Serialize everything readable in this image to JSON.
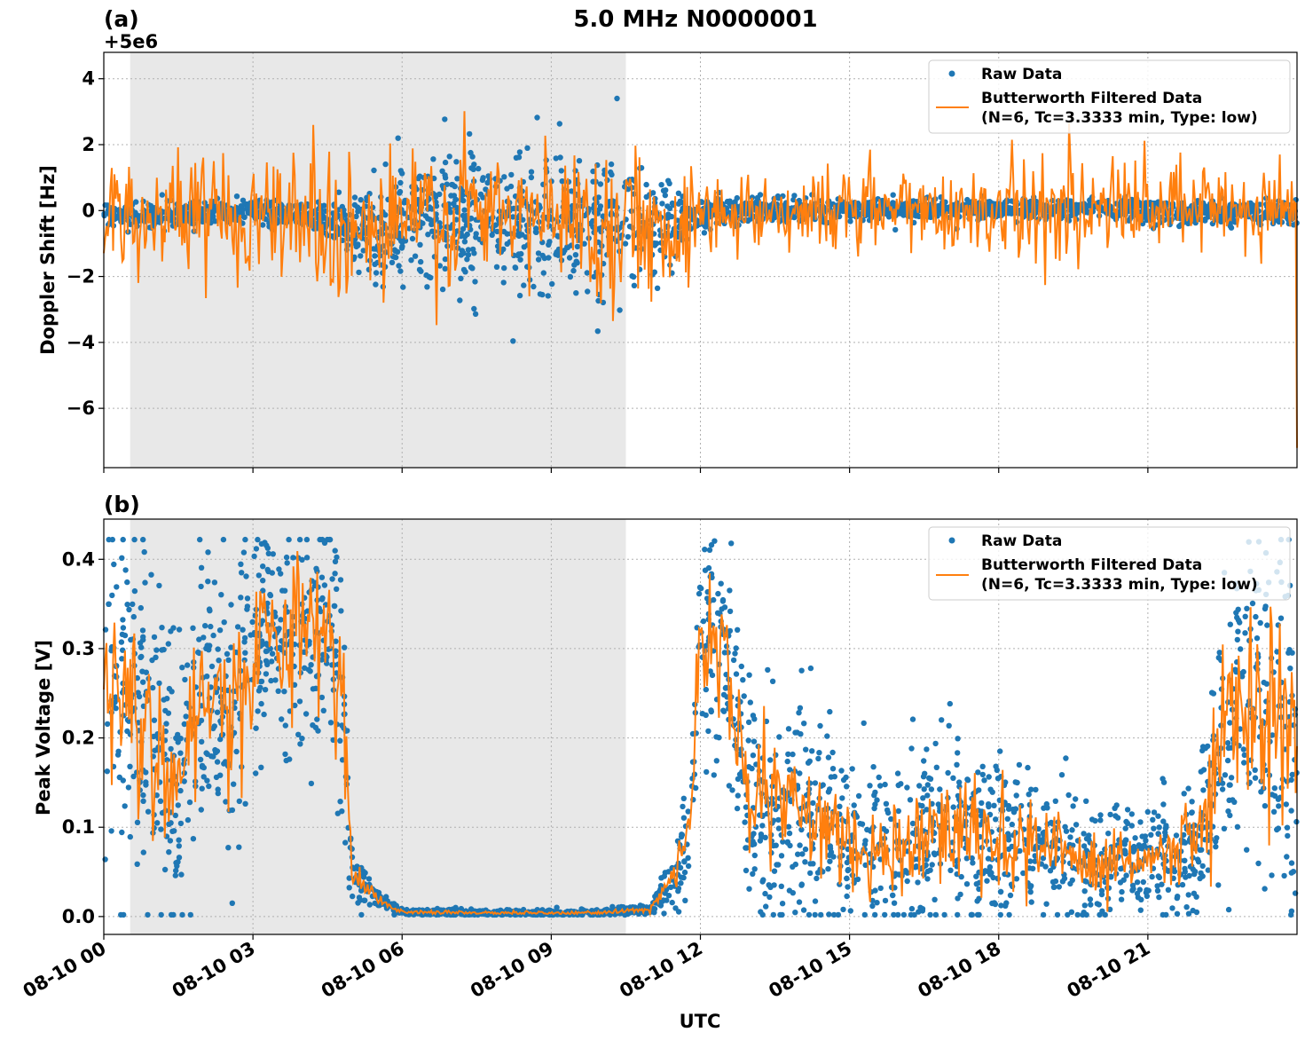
{
  "figure": {
    "title": "5.0 MHz N0000001",
    "xlabel": "UTC"
  },
  "colors": {
    "raw": "#1f77b4",
    "filtered": "#ff7f0e",
    "shade": "#e8e8e8"
  },
  "chart_data": [
    {
      "type": "scatter",
      "panel_label": "(a)",
      "offset_label": "+5e6",
      "ylabel": "Doppler Shift [Hz]",
      "xlim_hours": [
        0,
        24
      ],
      "ylim": [
        -7.8,
        4.8
      ],
      "yticks": [
        -6,
        -4,
        -2,
        0,
        2,
        4
      ],
      "ytick_labels": [
        "−6",
        "−4",
        "−2",
        "0",
        "2",
        "4"
      ],
      "xticks_hours": [
        0,
        3,
        6,
        9,
        12,
        15,
        18,
        21
      ],
      "xtick_labels": [
        "08-10 00",
        "08-10 03",
        "08-10 06",
        "08-10 09",
        "08-10 12",
        "08-10 15",
        "08-10 18",
        "08-10 21"
      ],
      "shaded_interval_hours": [
        0.53,
        10.5
      ],
      "grid": true,
      "legend_position": "top-right",
      "series": [
        {
          "name": "Raw Data",
          "kind": "points"
        },
        {
          "name": "Butterworth Filtered Data",
          "name_line2": "(N=6, Tc=3.3333 min, Type: low)",
          "kind": "line"
        }
      ],
      "envelope": {
        "x_hours": [
          0,
          1,
          2,
          3,
          4,
          4.8,
          5.5,
          6,
          7,
          8,
          9,
          10,
          10.5,
          11.2,
          11.8,
          12.5,
          14,
          16,
          18,
          20,
          22,
          24
        ],
        "spread": [
          0.3,
          0.3,
          0.3,
          0.3,
          0.3,
          0.5,
          1.4,
          1.6,
          1.6,
          1.6,
          1.7,
          1.8,
          1.6,
          1.2,
          0.5,
          0.3,
          0.25,
          0.25,
          0.25,
          0.25,
          0.3,
          0.3
        ],
        "mean": [
          -0.15,
          -0.15,
          -0.1,
          0.0,
          -0.1,
          -0.4,
          -0.8,
          -0.3,
          -0.2,
          -0.2,
          -0.2,
          -0.3,
          -0.4,
          -0.5,
          -0.2,
          0.0,
          0.0,
          0.05,
          0.05,
          0.05,
          -0.05,
          -0.05
        ],
        "filtered_spread": [
          1.1,
          1.1,
          1.1,
          1.2,
          1.4,
          1.5,
          1.7,
          1.6,
          1.5,
          1.3,
          1.3,
          1.4,
          1.4,
          1.3,
          1.0,
          0.8,
          0.8,
          0.9,
          0.9,
          0.9,
          1.0,
          1.1
        ]
      },
      "extremes": {
        "max_raw": 4.2,
        "min_raw": -4.5,
        "end_filtered": -7.2
      }
    },
    {
      "type": "scatter",
      "panel_label": "(b)",
      "ylabel": "Peak Voltage [V]",
      "xlim_hours": [
        0,
        24
      ],
      "ylim": [
        -0.02,
        0.445
      ],
      "yticks": [
        0.0,
        0.1,
        0.2,
        0.3,
        0.4
      ],
      "ytick_labels": [
        "0.0",
        "0.1",
        "0.2",
        "0.3",
        "0.4"
      ],
      "xticks_hours": [
        0,
        3,
        6,
        9,
        12,
        15,
        18,
        21
      ],
      "xtick_labels": [
        "08-10 00",
        "08-10 03",
        "08-10 06",
        "08-10 09",
        "08-10 12",
        "08-10 15",
        "08-10 18",
        "08-10 21"
      ],
      "shaded_interval_hours": [
        0.53,
        10.5
      ],
      "grid": true,
      "legend_position": "top-right",
      "series": [
        {
          "name": "Raw Data",
          "kind": "points"
        },
        {
          "name": "Butterworth Filtered Data",
          "name_line2": "(N=6, Tc=3.3333 min, Type: low)",
          "kind": "line"
        }
      ],
      "envelope": {
        "x_hours": [
          0,
          0.5,
          1,
          1.5,
          2,
          2.5,
          3,
          3.5,
          4,
          4.5,
          4.8,
          5.0,
          5.5,
          6.0,
          8.0,
          10.0,
          11.0,
          11.5,
          11.8,
          12.0,
          12.5,
          13,
          14,
          15,
          16,
          17,
          18,
          19,
          20,
          21,
          22,
          22.5,
          23,
          24
        ],
        "mean": [
          0.25,
          0.28,
          0.2,
          0.15,
          0.28,
          0.22,
          0.3,
          0.32,
          0.3,
          0.33,
          0.25,
          0.05,
          0.02,
          0.005,
          0.004,
          0.004,
          0.008,
          0.05,
          0.1,
          0.32,
          0.3,
          0.12,
          0.12,
          0.09,
          0.07,
          0.1,
          0.09,
          0.07,
          0.06,
          0.06,
          0.08,
          0.22,
          0.25,
          0.2
        ],
        "spread": [
          0.15,
          0.14,
          0.15,
          0.14,
          0.13,
          0.15,
          0.12,
          0.1,
          0.12,
          0.09,
          0.12,
          0.03,
          0.01,
          0.003,
          0.003,
          0.003,
          0.005,
          0.03,
          0.06,
          0.1,
          0.12,
          0.1,
          0.1,
          0.08,
          0.08,
          0.1,
          0.08,
          0.06,
          0.05,
          0.05,
          0.06,
          0.17,
          0.17,
          0.17
        ]
      }
    }
  ]
}
